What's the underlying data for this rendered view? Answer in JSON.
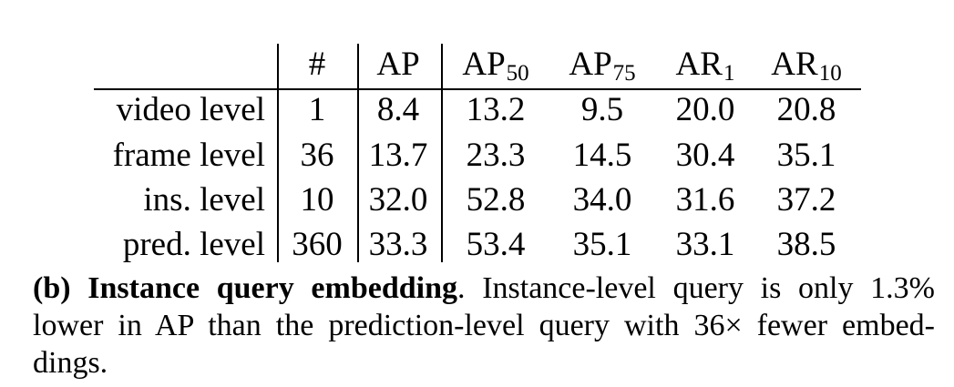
{
  "table": {
    "columns": [
      "#",
      "AP",
      "AP",
      "AP",
      "AR",
      "AR"
    ],
    "column_subscripts": [
      "",
      "",
      "50",
      "75",
      "1",
      "10"
    ],
    "rows": [
      {
        "label": "video level",
        "values": [
          "1",
          "8.4",
          "13.2",
          "9.5",
          "20.0",
          "20.8"
        ]
      },
      {
        "label": "frame level",
        "values": [
          "36",
          "13.7",
          "23.3",
          "14.5",
          "30.4",
          "35.1"
        ]
      },
      {
        "label": "ins. level",
        "values": [
          "10",
          "32.0",
          "52.8",
          "34.0",
          "31.6",
          "37.2"
        ]
      },
      {
        "label": "pred. level",
        "values": [
          "360",
          "33.3",
          "53.4",
          "35.1",
          "33.1",
          "38.5"
        ]
      }
    ]
  },
  "caption": {
    "prefix": "(b) Instance query embedding",
    "sep": ".",
    "body": "Instance-level query is only 1.3% lower in AP than the prediction-level query with 36× fewer embed- dings."
  }
}
